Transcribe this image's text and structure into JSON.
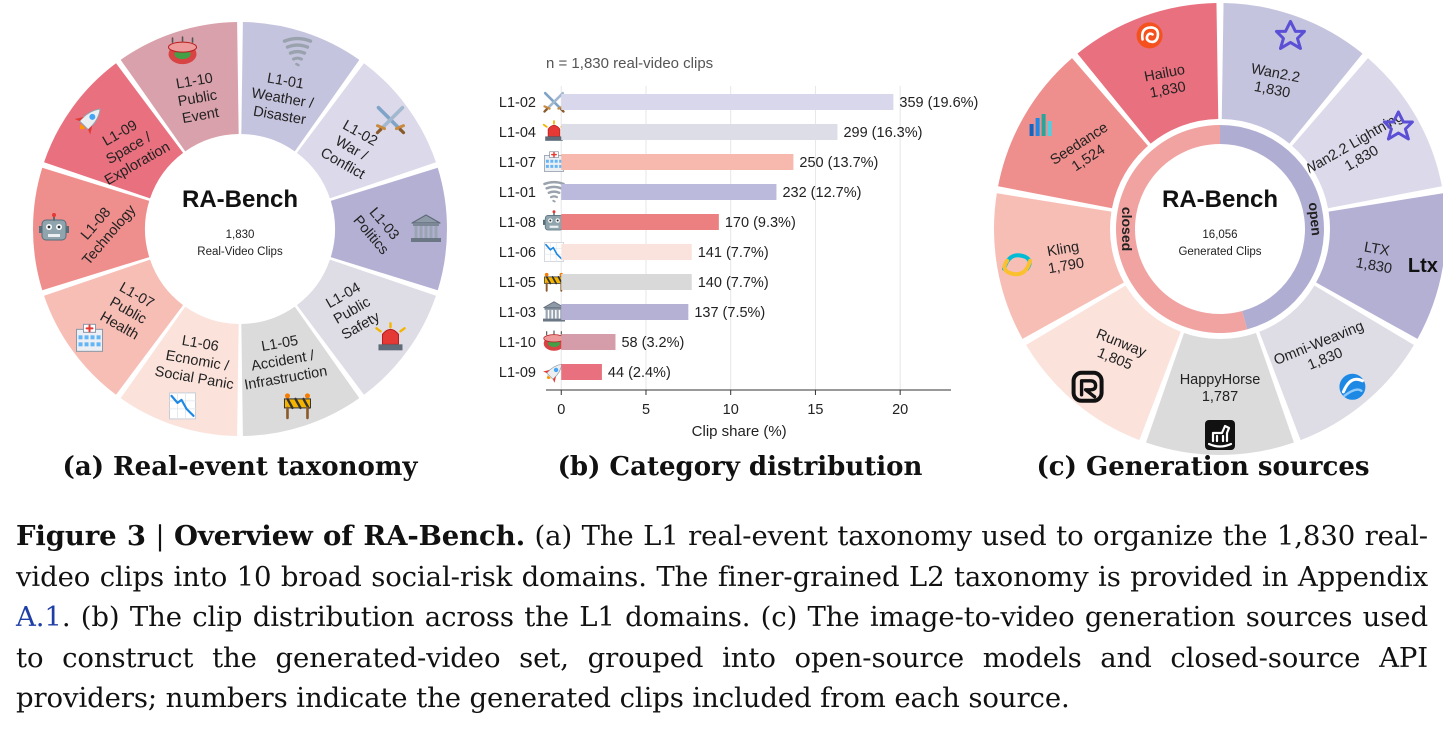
{
  "taxonomy": {
    "center_title": "RA-Bench",
    "center_count": "1,830",
    "center_unit": "Real-Video Clips",
    "segments": [
      {
        "id": "L1-01",
        "lines": [
          "L1-01",
          "Weather /",
          "Disaster"
        ],
        "icon": "tornado-icon",
        "color": "#c5c4de"
      },
      {
        "id": "L1-02",
        "lines": [
          "L1-02",
          "War /",
          "Conflict"
        ],
        "icon": "crossed-swords-icon",
        "color": "#dcdaea"
      },
      {
        "id": "L1-03",
        "lines": [
          "L1-03",
          "Politics"
        ],
        "icon": "classical-building-icon",
        "color": "#b3b0d4"
      },
      {
        "id": "L1-04",
        "lines": [
          "L1-04",
          "Public",
          "Safety"
        ],
        "icon": "police-light-icon",
        "color": "#dedde6"
      },
      {
        "id": "L1-05",
        "lines": [
          "L1-05",
          "Accident /",
          "Infrastruction"
        ],
        "icon": "construction-barrier-icon",
        "color": "#dcdbdb"
      },
      {
        "id": "L1-06",
        "lines": [
          "L1-06",
          "Ecnomic /",
          "Social Panic"
        ],
        "icon": "chart-decreasing-icon",
        "color": "#fbe3dc"
      },
      {
        "id": "L1-07",
        "lines": [
          "L1-07",
          "Public",
          "Health"
        ],
        "icon": "hospital-icon",
        "color": "#f7beb6"
      },
      {
        "id": "L1-08",
        "lines": [
          "L1-08",
          "Technology"
        ],
        "icon": "robot-icon",
        "color": "#ef8f8d"
      },
      {
        "id": "L1-09",
        "lines": [
          "L1-09",
          "Space /",
          "Exploration"
        ],
        "icon": "rocket-icon",
        "color": "#e9707e"
      },
      {
        "id": "L1-10",
        "lines": [
          "L1-10",
          "Public",
          "Event"
        ],
        "icon": "stadium-icon",
        "color": "#d9a1ab"
      }
    ],
    "caption": "(a) Real-event taxonomy"
  },
  "distribution": {
    "caption": "(b) Category distribution",
    "chart_data": {
      "type": "bar",
      "orientation": "horizontal",
      "title": "n = 1,830 real-video clips",
      "xlabel": "Clip share (%)",
      "ylabel": "",
      "xlim": [
        -0.9,
        23
      ],
      "xticks": [
        0,
        5,
        10,
        15,
        20
      ],
      "grid": true,
      "categories": [
        "L1-02",
        "L1-04",
        "L1-07",
        "L1-01",
        "L1-08",
        "L1-06",
        "L1-05",
        "L1-03",
        "L1-10",
        "L1-09"
      ],
      "values": [
        19.6,
        16.3,
        13.7,
        12.7,
        9.3,
        7.7,
        7.7,
        7.5,
        3.2,
        2.4
      ],
      "labels": [
        "359 (19.6%)",
        "299 (16.3%)",
        "250 (13.7%)",
        "232 (12.7%)",
        "170 (9.3%)",
        "141 (7.7%)",
        "140 (7.7%)",
        "137 (7.5%)",
        "58 (3.2%)",
        "44 (2.4%)"
      ],
      "colors": [
        "#d9d7ec",
        "#dddde7",
        "#f7b8ad",
        "#bcbadc",
        "#ec7f7f",
        "#fae3dd",
        "#dad9d9",
        "#b4b1d4",
        "#d49da9",
        "#e8707f"
      ],
      "icons": [
        "crossed-swords-icon",
        "police-light-icon",
        "hospital-icon",
        "tornado-icon",
        "robot-icon",
        "chart-decreasing-icon",
        "construction-barrier-icon",
        "classical-building-icon",
        "stadium-icon",
        "rocket-icon"
      ]
    }
  },
  "sources": {
    "caption": "(c) Generation sources",
    "center_title": "RA-Bench",
    "center_count": "16,056",
    "center_unit": "Generated Clips",
    "open_label": "open",
    "closed_label": "closed",
    "open_fraction": 0.458,
    "models": [
      {
        "name": "Wan2.2",
        "count": "1,830",
        "icon": "wan-logo-icon",
        "color": "#c5c4de"
      },
      {
        "name": "Wan2.2 Lightning",
        "count": "1,830",
        "icon": "wan-logo-icon",
        "color": "#dcdaea"
      },
      {
        "name": "LTX",
        "count": "1,830",
        "icon": "ltx-logo-icon",
        "color": "#b3b0d4"
      },
      {
        "name": "Omni-Weaving",
        "count": "1,830",
        "icon": "omniweaving-logo-icon",
        "color": "#dedde6"
      },
      {
        "name": "HappyHorse",
        "count": "1,787",
        "icon": "rocking-horse-icon",
        "color": "#dcdbdb"
      },
      {
        "name": "Runway",
        "count": "1,805",
        "icon": "runway-logo-icon",
        "color": "#fbe3dc"
      },
      {
        "name": "Kling",
        "count": "1,790",
        "icon": "kling-logo-icon",
        "color": "#f7beb6"
      },
      {
        "name": "Seedance",
        "count": "1,524",
        "icon": "seedance-logo-icon",
        "color": "#ef8f8d"
      },
      {
        "name": "Hailuo",
        "count": "1,830",
        "icon": "hailuo-logo-icon",
        "color": "#e9707e"
      }
    ],
    "colors": {
      "open_ring": "#b0add2",
      "closed_ring": "#f0a3a0"
    }
  },
  "caption": {
    "label": "Figure 3",
    "separator": " | ",
    "title": "Overview of RA-Bench.",
    "text_a": " (a) The L1 real-event taxonomy used to organize the 1,830 real-video clips into 10 broad social-risk domains. The finer-grained L2 taxonomy is provided in Appendix ",
    "ref": "A.1",
    "text_b": ". (b) The clip distribution across the L1 domains. (c) The image-to-video generation sources used to construct the generated-video set, grouped into open-source models and closed-source API providers; numbers indicate the generated clips included from each source."
  }
}
